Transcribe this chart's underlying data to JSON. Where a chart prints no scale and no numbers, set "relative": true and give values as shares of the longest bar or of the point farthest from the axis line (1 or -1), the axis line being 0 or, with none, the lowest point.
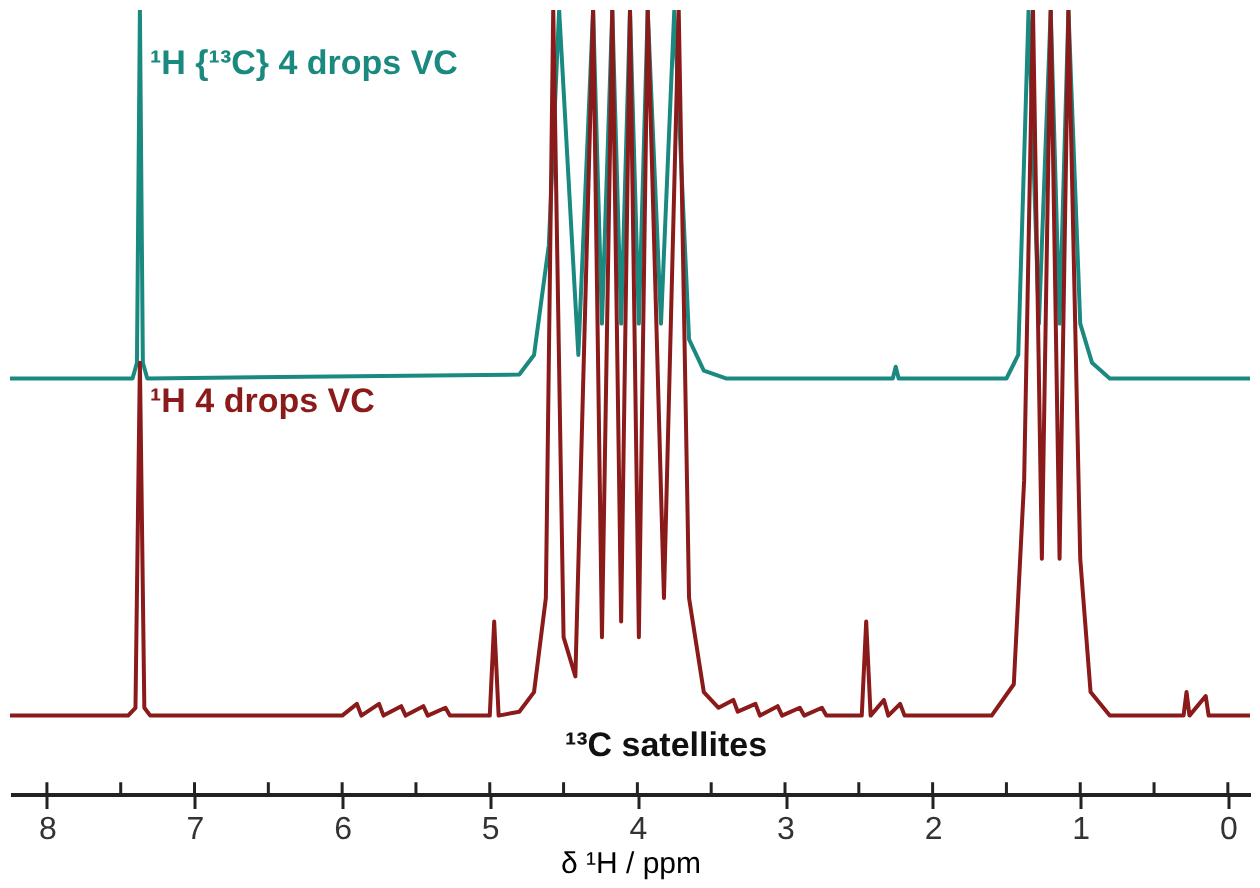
{
  "chart_data": {
    "type": "line",
    "relative": true,
    "xlabel": "δ ¹H / ppm",
    "xlim": [
      8.25,
      -0.15
    ],
    "xticks": [
      8,
      {
        "value": 7.5,
        "label": null
      },
      7,
      {
        "value": 6.5,
        "label": null
      },
      6,
      {
        "value": 5.5,
        "label": null
      },
      5,
      {
        "value": 4.5,
        "label": null
      },
      4,
      {
        "value": 3.5,
        "label": null
      },
      3,
      {
        "value": 2.5,
        "label": null
      },
      2,
      {
        "value": 1.5,
        "label": null
      },
      1,
      {
        "value": 0.5,
        "label": null
      },
      0
    ],
    "grid": false,
    "marker": "none",
    "line_style": "solid",
    "series": [
      {
        "name": "¹H {¹³C} 4 drops VC",
        "color": "#1a8a80",
        "x": [
          8.25,
          7.42,
          7.39,
          7.37,
          7.35,
          7.32,
          4.8,
          4.7,
          4.6,
          4.53,
          4.4,
          4.3,
          4.24,
          4.17,
          4.11,
          4.05,
          3.99,
          3.93,
          3.84,
          3.75,
          3.65,
          3.55,
          3.4,
          2.27,
          2.25,
          2.23,
          1.5,
          1.42,
          1.35,
          1.28,
          1.2,
          1.14,
          1.08,
          1.0,
          0.92,
          0.8,
          -0.15
        ],
        "values": [
          0.53,
          0.53,
          0.55,
          1.0,
          0.55,
          0.53,
          0.535,
          0.56,
          0.7,
          1.0,
          0.56,
          1.0,
          0.6,
          1.0,
          0.6,
          1.0,
          0.6,
          1.0,
          0.6,
          1.0,
          0.58,
          0.54,
          0.53,
          0.53,
          0.545,
          0.53,
          0.53,
          0.56,
          1.0,
          0.6,
          1.0,
          0.6,
          1.0,
          0.6,
          0.55,
          0.53,
          0.53
        ]
      },
      {
        "name": "¹H 4 drops VC",
        "color": "#8b1a1a",
        "x": [
          8.25,
          7.45,
          7.4,
          7.37,
          7.34,
          7.3,
          6.0,
          5.9,
          5.87,
          5.75,
          5.72,
          5.6,
          5.57,
          5.45,
          5.42,
          5.3,
          5.27,
          5.0,
          4.97,
          4.94,
          4.8,
          4.7,
          4.62,
          4.57,
          4.5,
          4.42,
          4.3,
          4.24,
          4.17,
          4.11,
          4.05,
          3.99,
          3.93,
          3.82,
          3.72,
          3.65,
          3.55,
          3.45,
          3.35,
          3.32,
          3.2,
          3.17,
          3.05,
          3.02,
          2.9,
          2.87,
          2.75,
          2.72,
          2.48,
          2.45,
          2.42,
          2.33,
          2.3,
          2.22,
          2.19,
          1.6,
          1.45,
          1.38,
          1.32,
          1.26,
          1.2,
          1.14,
          1.08,
          1.0,
          0.93,
          0.8,
          0.3,
          0.28,
          0.26,
          0.15,
          0.13,
          -0.15
        ],
        "values": [
          0.1,
          0.1,
          0.11,
          0.55,
          0.11,
          0.1,
          0.1,
          0.115,
          0.1,
          0.115,
          0.1,
          0.112,
          0.1,
          0.112,
          0.1,
          0.11,
          0.1,
          0.1,
          0.22,
          0.1,
          0.105,
          0.13,
          0.25,
          1.0,
          0.2,
          0.15,
          1.0,
          0.2,
          1.0,
          0.22,
          1.0,
          0.2,
          1.0,
          0.25,
          1.0,
          0.25,
          0.13,
          0.11,
          0.12,
          0.105,
          0.115,
          0.1,
          0.112,
          0.1,
          0.11,
          0.1,
          0.11,
          0.1,
          0.1,
          0.22,
          0.1,
          0.12,
          0.1,
          0.115,
          0.1,
          0.1,
          0.14,
          0.4,
          1.0,
          0.3,
          1.0,
          0.3,
          1.0,
          0.3,
          0.13,
          0.1,
          0.1,
          0.13,
          0.1,
          0.125,
          0.1,
          0.1
        ]
      }
    ],
    "annotations": [
      "¹³C satellites"
    ]
  }
}
